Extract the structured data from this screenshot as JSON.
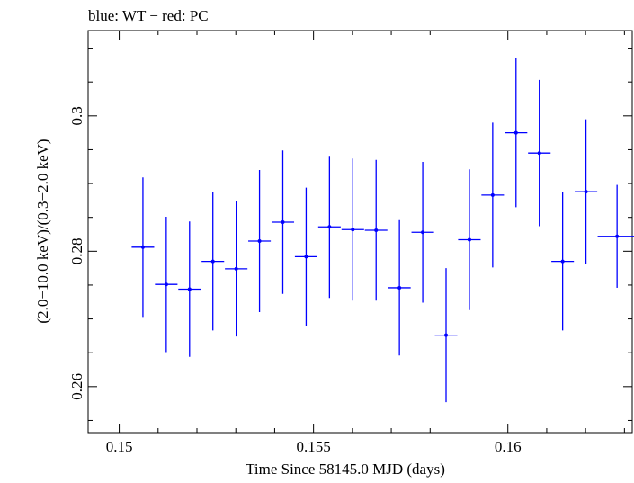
{
  "chart_data": {
    "type": "scatter",
    "title": "blue: WT − red: PC",
    "xlabel": "Time Since 58145.0 MJD (days)",
    "ylabel": "(2.0−10.0 keV)/(0.3−2.0 keV)",
    "xlim": [
      0.1492,
      0.1632
    ],
    "ylim": [
      0.2532,
      0.3126
    ],
    "x_ticks_major": [
      0.15,
      0.155,
      0.16
    ],
    "x_tick_labels": [
      "0.15",
      "0.155",
      "0.16"
    ],
    "y_ticks_major": [
      0.26,
      0.28,
      0.3
    ],
    "y_tick_labels": [
      "0.26",
      "0.28",
      "0.3"
    ],
    "grid": false,
    "series": [
      {
        "color": "#0000ff",
        "points": [
          {
            "x": 0.15061,
            "xerr": 0.00029,
            "y": 0.2806,
            "yerr": 0.0103
          },
          {
            "x": 0.15121,
            "xerr": 0.00029,
            "y": 0.2751,
            "yerr": 0.01
          },
          {
            "x": 0.15181,
            "xerr": 0.00029,
            "y": 0.2744,
            "yerr": 0.01
          },
          {
            "x": 0.15241,
            "xerr": 0.00029,
            "y": 0.2785,
            "yerr": 0.0102
          },
          {
            "x": 0.15301,
            "xerr": 0.00029,
            "y": 0.2774,
            "yerr": 0.01
          },
          {
            "x": 0.15361,
            "xerr": 0.00029,
            "y": 0.2815,
            "yerr": 0.0105
          },
          {
            "x": 0.15421,
            "xerr": 0.00029,
            "y": 0.2843,
            "yerr": 0.0106
          },
          {
            "x": 0.15481,
            "xerr": 0.00029,
            "y": 0.2792,
            "yerr": 0.0102
          },
          {
            "x": 0.15541,
            "xerr": 0.00029,
            "y": 0.2836,
            "yerr": 0.0105
          },
          {
            "x": 0.15601,
            "xerr": 0.00029,
            "y": 0.2832,
            "yerr": 0.0105
          },
          {
            "x": 0.15661,
            "xerr": 0.00029,
            "y": 0.2831,
            "yerr": 0.0104
          },
          {
            "x": 0.15721,
            "xerr": 0.00029,
            "y": 0.2746,
            "yerr": 0.01
          },
          {
            "x": 0.15781,
            "xerr": 0.00029,
            "y": 0.2828,
            "yerr": 0.0104
          },
          {
            "x": 0.15841,
            "xerr": 0.00029,
            "y": 0.2676,
            "yerr": 0.0099
          },
          {
            "x": 0.15901,
            "xerr": 0.00029,
            "y": 0.2817,
            "yerr": 0.0104
          },
          {
            "x": 0.15961,
            "xerr": 0.00029,
            "y": 0.2883,
            "yerr": 0.0107
          },
          {
            "x": 0.16021,
            "xerr": 0.00029,
            "y": 0.2975,
            "yerr": 0.011
          },
          {
            "x": 0.16081,
            "xerr": 0.00029,
            "y": 0.2945,
            "yerr": 0.0108
          },
          {
            "x": 0.16141,
            "xerr": 0.00029,
            "y": 0.2785,
            "yerr": 0.0102
          },
          {
            "x": 0.16201,
            "xerr": 0.00029,
            "y": 0.2888,
            "yerr": 0.0107
          },
          {
            "x": 0.16281,
            "xerr": 0.0005,
            "y": 0.2822,
            "yerr": 0.0076
          }
        ]
      }
    ]
  }
}
